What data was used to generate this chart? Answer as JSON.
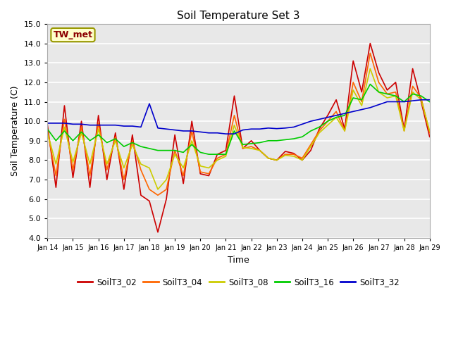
{
  "title": "Soil Temperature Set 3",
  "xlabel": "Time",
  "ylabel": "Soil Temperature (C)",
  "ylim": [
    4.0,
    15.0
  ],
  "yticks": [
    4.0,
    5.0,
    6.0,
    7.0,
    8.0,
    9.0,
    10.0,
    11.0,
    12.0,
    13.0,
    14.0,
    15.0
  ],
  "xtick_labels": [
    "Jan 14",
    "Jan 15",
    "Jan 16",
    "Jan 17",
    "Jan 18",
    "Jan 19",
    "Jan 20",
    "Jan 21",
    "Jan 22",
    "Jan 23",
    "Jan 24",
    "Jan 25",
    "Jan 26",
    "Jan 27",
    "Jan 28",
    "Jan 29"
  ],
  "series_colors": {
    "SoilT3_02": "#cc0000",
    "SoilT3_04": "#ff6600",
    "SoilT3_08": "#cccc00",
    "SoilT3_16": "#00cc00",
    "SoilT3_32": "#0000cc"
  },
  "annotation_box": "TW_met",
  "fig_facecolor": "#ffffff",
  "plot_bg_color": "#e8e8e8",
  "series": {
    "SoilT3_02": [
      9.8,
      6.6,
      10.8,
      7.1,
      10.0,
      6.6,
      10.3,
      7.0,
      9.4,
      6.5,
      9.3,
      6.2,
      5.9,
      4.3,
      6.0,
      9.3,
      6.8,
      10.0,
      7.3,
      7.2,
      8.3,
      8.5,
      11.3,
      8.6,
      9.0,
      8.5,
      8.1,
      8.0,
      8.45,
      8.35,
      8.0,
      8.5,
      9.6,
      10.3,
      11.1,
      9.6,
      13.1,
      11.5,
      14.0,
      12.5,
      11.6,
      12.0,
      9.6,
      12.7,
      11.0,
      9.2
    ],
    "SoilT3_04": [
      9.5,
      7.2,
      10.1,
      7.5,
      9.7,
      7.2,
      9.9,
      7.5,
      9.2,
      7.0,
      9.0,
      7.5,
      6.5,
      6.2,
      6.5,
      8.5,
      7.2,
      9.5,
      7.4,
      7.3,
      8.1,
      8.3,
      10.3,
      8.6,
      8.7,
      8.5,
      8.1,
      8.0,
      8.3,
      8.3,
      8.1,
      8.8,
      9.5,
      10.0,
      10.5,
      9.5,
      12.0,
      11.0,
      13.5,
      12.0,
      11.4,
      11.5,
      9.5,
      11.8,
      11.2,
      9.4
    ],
    "SoilT3_08": [
      9.4,
      7.8,
      9.7,
      7.9,
      9.4,
      7.8,
      9.6,
      7.8,
      9.0,
      7.6,
      8.8,
      7.8,
      7.6,
      6.5,
      7.0,
      8.3,
      7.6,
      9.0,
      7.7,
      7.6,
      8.0,
      8.2,
      9.8,
      8.65,
      8.6,
      8.5,
      8.1,
      8.0,
      8.25,
      8.2,
      8.0,
      8.7,
      9.4,
      9.8,
      10.2,
      9.5,
      11.6,
      10.8,
      12.7,
      11.5,
      11.2,
      11.3,
      9.5,
      11.5,
      11.1,
      9.5
    ],
    "SoilT3_16": [
      9.6,
      9.0,
      9.5,
      9.0,
      9.45,
      9.0,
      9.3,
      8.9,
      9.1,
      8.7,
      8.9,
      8.7,
      8.6,
      8.5,
      8.5,
      8.5,
      8.4,
      8.8,
      8.4,
      8.3,
      8.3,
      8.3,
      9.5,
      8.8,
      8.85,
      8.9,
      9.0,
      9.0,
      9.05,
      9.1,
      9.2,
      9.5,
      9.7,
      10.0,
      10.2,
      10.3,
      11.2,
      11.1,
      11.9,
      11.5,
      11.4,
      11.3,
      11.0,
      11.4,
      11.3,
      11.0
    ],
    "SoilT3_32": [
      9.9,
      9.9,
      9.9,
      9.85,
      9.85,
      9.8,
      9.8,
      9.8,
      9.8,
      9.75,
      9.75,
      9.7,
      10.9,
      9.65,
      9.6,
      9.55,
      9.5,
      9.5,
      9.45,
      9.4,
      9.4,
      9.35,
      9.35,
      9.55,
      9.6,
      9.6,
      9.65,
      9.62,
      9.65,
      9.7,
      9.85,
      10.0,
      10.1,
      10.2,
      10.3,
      10.4,
      10.5,
      10.6,
      10.7,
      10.85,
      11.0,
      11.0,
      11.0,
      11.05,
      11.1,
      11.1
    ]
  }
}
